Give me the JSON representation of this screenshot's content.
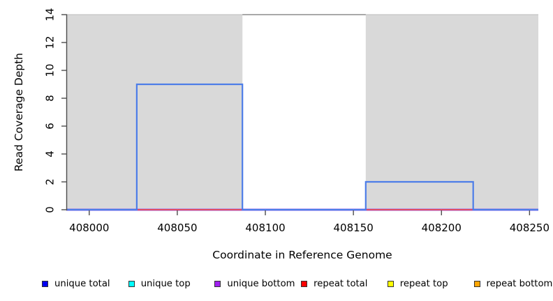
{
  "figure": {
    "background": "#ffffff"
  },
  "chart_data": {
    "type": "line",
    "subtype": "step-coverage-plot",
    "title": "",
    "xlabel": "Coordinate in Reference Genome",
    "ylabel": "Read Coverage Depth",
    "xlim": [
      407987,
      408255
    ],
    "ylim": [
      0,
      14
    ],
    "x_ticks": [
      408000,
      408050,
      408100,
      408150,
      408200,
      408250
    ],
    "y_ticks": [
      0,
      2,
      4,
      6,
      8,
      10,
      12,
      14
    ],
    "grid": false,
    "legend_position": "bottom",
    "axis_color": "#4d4d4d",
    "tick_label_color": "#000000",
    "shaded_regions": {
      "fill": "#d9d9d9",
      "regions": [
        [
          407987,
          408087
        ],
        [
          408157,
          408255
        ]
      ]
    },
    "top_border": {
      "y": 14,
      "full_color": "#c6c6c6",
      "gap_segment": {
        "x": [
          408087,
          408157
        ],
        "color": "#8f8f8f"
      }
    },
    "series": [
      {
        "name": "unique bottom",
        "color": "#a020f0",
        "render": "baseline",
        "y": 0,
        "line_color": "#9259ec",
        "stroke_width": 3
      },
      {
        "name": "repeat total",
        "color": "#ff0000",
        "render": "baseline",
        "y": 0,
        "line_color": "#e14b62",
        "stroke_width": 2
      },
      {
        "name": "unique total",
        "color": "#0000f0",
        "render": "step",
        "line_color": "#4d7de8",
        "stroke_width": 2.2,
        "points": [
          [
            407987,
            0
          ],
          [
            408027,
            0
          ],
          [
            408027,
            9
          ],
          [
            408087,
            9
          ],
          [
            408087,
            0
          ],
          [
            408157,
            0
          ],
          [
            408157,
            2
          ],
          [
            408218,
            2
          ],
          [
            408218,
            0
          ],
          [
            408255,
            0
          ]
        ]
      },
      {
        "name": "unique top",
        "color": "#00ffff",
        "render": "hidden",
        "y": 0
      },
      {
        "name": "repeat top",
        "color": "#ffff00",
        "render": "hidden",
        "y": 0
      },
      {
        "name": "repeat bottom",
        "color": "#ffa500",
        "render": "hidden",
        "y": 0
      }
    ]
  },
  "legend": {
    "swatch_border": "#333333",
    "items": [
      {
        "label": "unique total",
        "fill": "#0000f0"
      },
      {
        "label": "unique top",
        "fill": "#00ffff"
      },
      {
        "label": "unique bottom",
        "fill": "#a020f0"
      },
      {
        "label": "repeat total",
        "fill": "#ff0000"
      },
      {
        "label": "repeat top",
        "fill": "#ffff00"
      },
      {
        "label": "repeat bottom",
        "fill": "#ffa500"
      }
    ]
  }
}
